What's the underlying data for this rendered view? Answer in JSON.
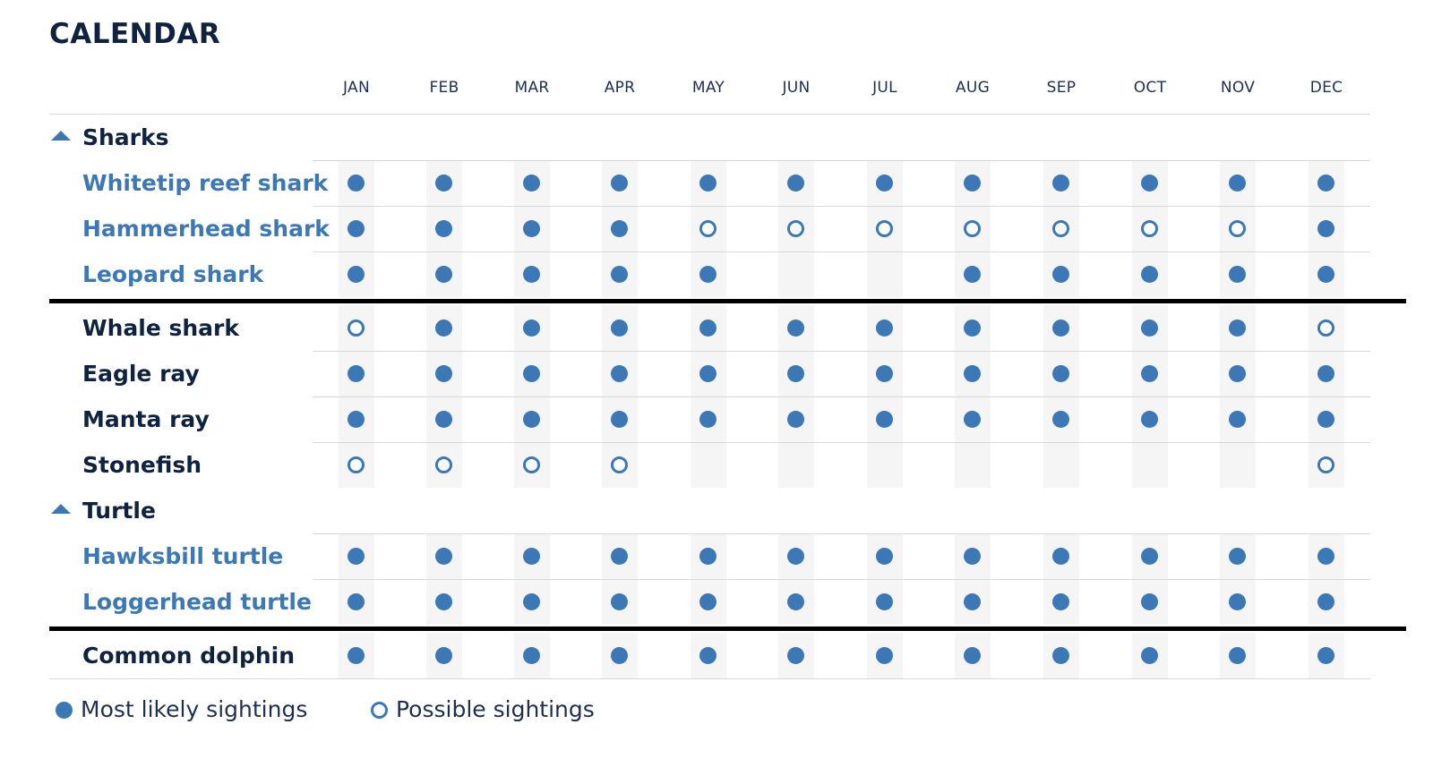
{
  "title": "CALENDAR",
  "months": [
    "JAN",
    "FEB",
    "MAR",
    "APR",
    "MAY",
    "JUN",
    "JUL",
    "AUG",
    "SEP",
    "OCT",
    "NOV",
    "DEC"
  ],
  "colors": {
    "accent": "#3d78b6",
    "text": "#0f2340",
    "stripe": "#f5f5f5",
    "divider": "#000000"
  },
  "rows": [
    {
      "type": "group",
      "label": "Sharks",
      "icon": "caret-up-icon"
    },
    {
      "type": "species",
      "label": "Whitetip reef shark",
      "link": true,
      "sightings": [
        "likely",
        "likely",
        "likely",
        "likely",
        "likely",
        "likely",
        "likely",
        "likely",
        "likely",
        "likely",
        "likely",
        "likely"
      ]
    },
    {
      "type": "species",
      "label": "Hammerhead shark",
      "link": true,
      "sightings": [
        "likely",
        "likely",
        "likely",
        "likely",
        "possible",
        "possible",
        "possible",
        "possible",
        "possible",
        "possible",
        "possible",
        "likely"
      ]
    },
    {
      "type": "species",
      "label": "Leopard shark",
      "link": true,
      "sightings": [
        "likely",
        "likely",
        "likely",
        "likely",
        "likely",
        "none",
        "none",
        "likely",
        "likely",
        "likely",
        "likely",
        "likely"
      ]
    },
    {
      "type": "divider"
    },
    {
      "type": "species",
      "label": "Whale shark",
      "link": false,
      "sightings": [
        "possible",
        "likely",
        "likely",
        "likely",
        "likely",
        "likely",
        "likely",
        "likely",
        "likely",
        "likely",
        "likely",
        "possible"
      ]
    },
    {
      "type": "species",
      "label": "Eagle ray",
      "link": false,
      "sightings": [
        "likely",
        "likely",
        "likely",
        "likely",
        "likely",
        "likely",
        "likely",
        "likely",
        "likely",
        "likely",
        "likely",
        "likely"
      ]
    },
    {
      "type": "species",
      "label": "Manta ray",
      "link": false,
      "sightings": [
        "likely",
        "likely",
        "likely",
        "likely",
        "likely",
        "likely",
        "likely",
        "likely",
        "likely",
        "likely",
        "likely",
        "likely"
      ]
    },
    {
      "type": "species",
      "label": "Stonefish",
      "link": false,
      "sightings": [
        "possible",
        "possible",
        "possible",
        "possible",
        "none",
        "none",
        "none",
        "none",
        "none",
        "none",
        "none",
        "possible"
      ]
    },
    {
      "type": "group",
      "label": "Turtle",
      "icon": "caret-up-icon"
    },
    {
      "type": "species",
      "label": "Hawksbill turtle",
      "link": true,
      "sightings": [
        "likely",
        "likely",
        "likely",
        "likely",
        "likely",
        "likely",
        "likely",
        "likely",
        "likely",
        "likely",
        "likely",
        "likely"
      ]
    },
    {
      "type": "species",
      "label": "Loggerhead turtle",
      "link": true,
      "sightings": [
        "likely",
        "likely",
        "likely",
        "likely",
        "likely",
        "likely",
        "likely",
        "likely",
        "likely",
        "likely",
        "likely",
        "likely"
      ]
    },
    {
      "type": "divider"
    },
    {
      "type": "species",
      "label": "Common dolphin",
      "link": false,
      "sightings": [
        "likely",
        "likely",
        "likely",
        "likely",
        "likely",
        "likely",
        "likely",
        "likely",
        "likely",
        "likely",
        "likely",
        "likely"
      ]
    }
  ],
  "legend": {
    "likely_label": "Most likely sightings",
    "possible_label": "Possible sightings"
  }
}
